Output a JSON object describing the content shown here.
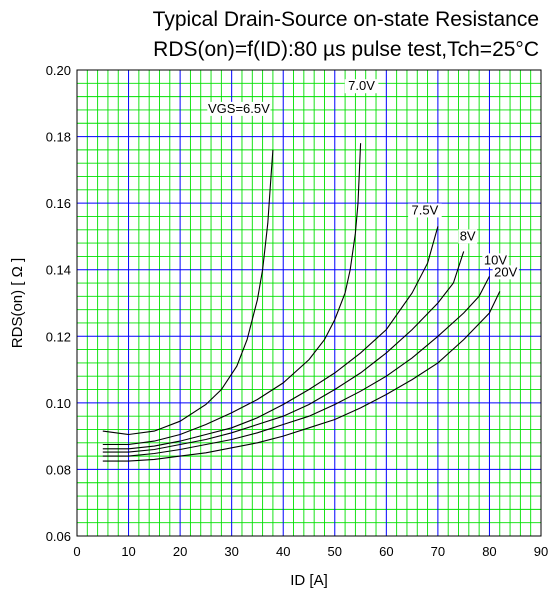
{
  "chart_data": {
    "type": "line",
    "title": "Typical Drain-Source on-state Resistance",
    "subtitle": "RDS(on)=f(ID):80  µs pulse test,Tch=25°C",
    "xlabel": "ID [A]",
    "ylabel": "RDS(on) [  Ω ]",
    "xlim": [
      0,
      90
    ],
    "ylim": [
      0.06,
      0.2
    ],
    "x_ticks": [
      "0",
      "10",
      "20",
      "30",
      "40",
      "50",
      "60",
      "70",
      "80",
      "90"
    ],
    "y_ticks": [
      "0.06",
      "0.08",
      "0.10",
      "0.12",
      "0.14",
      "0.16",
      "0.18",
      "0.20"
    ],
    "grid": true,
    "colors": {
      "minor_grid": "#00e000",
      "major_grid": "#0000ff",
      "curve": "#000000",
      "frame": "#000000"
    },
    "series": [
      {
        "name": "VGS=6.5V",
        "x": [
          5,
          10,
          15,
          20,
          25,
          28,
          31,
          33,
          35,
          36,
          37,
          37.5,
          38
        ],
        "y": [
          0.0915,
          0.0905,
          0.0915,
          0.0945,
          0.0995,
          0.104,
          0.111,
          0.119,
          0.131,
          0.14,
          0.154,
          0.165,
          0.176
        ]
      },
      {
        "name": "7.0V",
        "x": [
          5,
          10,
          15,
          20,
          25,
          30,
          35,
          40,
          45,
          48,
          50,
          52,
          53,
          54,
          54.5,
          55
        ],
        "y": [
          0.0875,
          0.0875,
          0.0885,
          0.0905,
          0.0935,
          0.097,
          0.101,
          0.106,
          0.113,
          0.119,
          0.125,
          0.133,
          0.14,
          0.151,
          0.16,
          0.178
        ]
      },
      {
        "name": "7.5V",
        "x": [
          5,
          10,
          15,
          20,
          25,
          30,
          35,
          40,
          45,
          50,
          55,
          60,
          65,
          68,
          70
        ],
        "y": [
          0.0862,
          0.0862,
          0.087,
          0.0885,
          0.0905,
          0.0925,
          0.0955,
          0.0995,
          0.104,
          0.109,
          0.115,
          0.122,
          0.133,
          0.142,
          0.153
        ]
      },
      {
        "name": "8V",
        "x": [
          5,
          10,
          15,
          20,
          25,
          30,
          35,
          40,
          45,
          50,
          55,
          60,
          65,
          70,
          73,
          75
        ],
        "y": [
          0.0852,
          0.0852,
          0.086,
          0.0875,
          0.089,
          0.091,
          0.0935,
          0.096,
          0.0995,
          0.104,
          0.109,
          0.115,
          0.122,
          0.13,
          0.136,
          0.1455
        ]
      },
      {
        "name": "10V",
        "x": [
          5,
          10,
          15,
          20,
          25,
          30,
          35,
          40,
          45,
          50,
          55,
          60,
          65,
          70,
          75,
          78,
          80
        ],
        "y": [
          0.084,
          0.084,
          0.0848,
          0.086,
          0.0875,
          0.089,
          0.091,
          0.0935,
          0.096,
          0.0995,
          0.1035,
          0.108,
          0.1135,
          0.12,
          0.127,
          0.132,
          0.138
        ]
      },
      {
        "name": "20V",
        "x": [
          5,
          10,
          15,
          20,
          25,
          30,
          35,
          40,
          45,
          50,
          55,
          60,
          65,
          70,
          75,
          80,
          82
        ],
        "y": [
          0.0825,
          0.0825,
          0.083,
          0.084,
          0.085,
          0.0865,
          0.088,
          0.09,
          0.0925,
          0.095,
          0.0985,
          0.1025,
          0.107,
          0.112,
          0.119,
          0.127,
          0.1335
        ]
      }
    ]
  }
}
